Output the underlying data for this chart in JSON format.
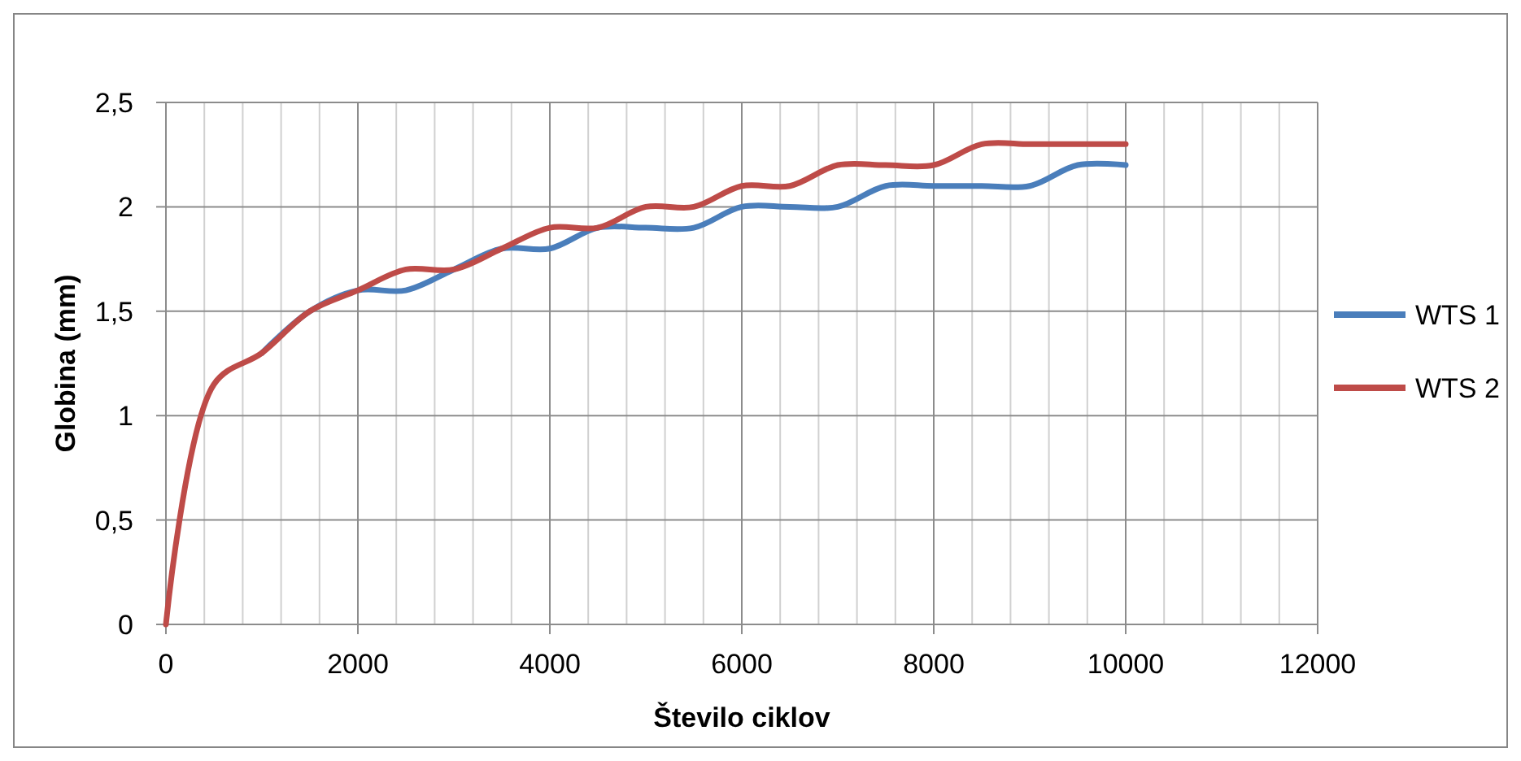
{
  "chart_data": {
    "type": "line",
    "xlabel": "Število ciklov",
    "ylabel": "Globina (mm)",
    "xlim": [
      0,
      12000
    ],
    "xticks": [
      0,
      2000,
      4000,
      6000,
      8000,
      10000,
      12000
    ],
    "ylim": [
      0,
      2.5
    ],
    "yticks": [
      0,
      {
        "value": 0.5,
        "label": "0,5"
      },
      1,
      {
        "value": 1.5,
        "label": "1,5"
      },
      2,
      {
        "value": 2.5,
        "label": "2,5"
      }
    ],
    "x": [
      0,
      500,
      1000,
      1500,
      2000,
      2500,
      3000,
      3500,
      4000,
      4500,
      5000,
      5500,
      6000,
      6500,
      7000,
      7500,
      8000,
      8500,
      9000,
      9500,
      10000
    ],
    "grid": true,
    "legend": "right",
    "line_style": "solid",
    "series": [
      {
        "name": "WTS 1",
        "color": "#4a7ebb",
        "values": [
          null,
          null,
          1.3,
          1.5,
          1.6,
          1.6,
          1.7,
          1.8,
          1.8,
          1.9,
          1.9,
          1.9,
          2.0,
          2.0,
          2.0,
          2.1,
          2.1,
          2.1,
          2.1,
          2.2,
          2.2
        ]
      },
      {
        "name": "WTS 2",
        "color": "#be4b48",
        "values": [
          0,
          1.15,
          1.3,
          1.5,
          1.6,
          1.7,
          1.7,
          1.8,
          1.9,
          1.9,
          2.0,
          2.0,
          2.1,
          2.1,
          2.2,
          2.2,
          2.2,
          2.3,
          2.3,
          2.3,
          2.3
        ]
      }
    ]
  }
}
